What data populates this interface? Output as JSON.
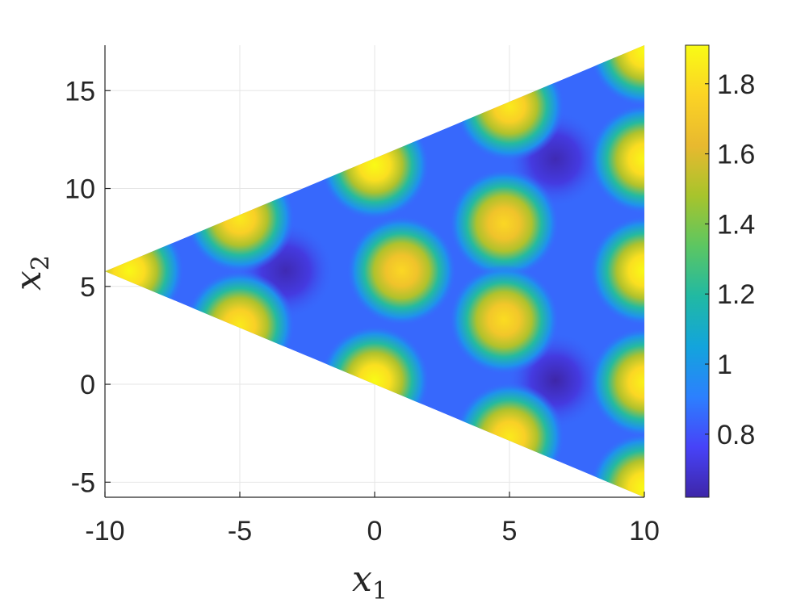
{
  "chart_data": {
    "type": "heatmap",
    "title": "",
    "xlabel": "x",
    "xlabel_subscript": "1",
    "ylabel": "x",
    "ylabel_subscript": "2",
    "xlim": [
      -10,
      10
    ],
    "ylim": [
      -5.77,
      17.32
    ],
    "x_ticks": [
      -10,
      -5,
      0,
      5,
      10
    ],
    "y_ticks": [
      -5,
      0,
      5,
      10,
      15
    ],
    "x_tick_labels": [
      "-10",
      "-5",
      "0",
      "5",
      "10"
    ],
    "y_tick_labels": [
      "-5",
      "0",
      "5",
      "10",
      "15"
    ],
    "grid": true,
    "domain_shape": "triangle",
    "domain_vertices": [
      [
        -10,
        5.77
      ],
      [
        10,
        17.32
      ],
      [
        10,
        -5.77
      ]
    ],
    "colorbar": {
      "range": [
        0.62,
        1.91
      ],
      "ticks": [
        0.8,
        1,
        1.2,
        1.4,
        1.6,
        1.8
      ],
      "tick_labels": [
        "0.8",
        "1",
        "1.2",
        "1.4",
        "1.6",
        "1.8"
      ],
      "colormap": [
        "#3e26a8",
        "#4743f8",
        "#2c80fe",
        "#13a4dc",
        "#21b9a3",
        "#5cc662",
        "#a7c42c",
        "#e8b92f",
        "#fbd325",
        "#f9fb15"
      ]
    },
    "field": {
      "background": 0.62,
      "peaks": [
        {
          "x": -9.1,
          "y": 5.8,
          "value": 1.9
        },
        {
          "x": -5,
          "y": 8.5,
          "value": 1.85
        },
        {
          "x": -5,
          "y": 3,
          "value": 1.85
        },
        {
          "x": 0,
          "y": 11.2,
          "value": 1.91
        },
        {
          "x": 0,
          "y": 0.2,
          "value": 1.91
        },
        {
          "x": 1,
          "y": 5.8,
          "value": 1.78
        },
        {
          "x": 4.8,
          "y": 8.2,
          "value": 1.78
        },
        {
          "x": 4.8,
          "y": 3.3,
          "value": 1.8
        },
        {
          "x": 5,
          "y": 14.2,
          "value": 1.85
        },
        {
          "x": 5,
          "y": -2.7,
          "value": 1.85
        },
        {
          "x": 10,
          "y": 17,
          "value": 1.91
        },
        {
          "x": 10,
          "y": 11.5,
          "value": 1.9
        },
        {
          "x": 10,
          "y": 5.8,
          "value": 1.91
        },
        {
          "x": 10,
          "y": 0.1,
          "value": 1.88
        },
        {
          "x": 10,
          "y": -5.3,
          "value": 1.91
        }
      ],
      "minima": [
        {
          "x": -3.3,
          "y": 5.8,
          "value": 0.64
        },
        {
          "x": 6.7,
          "y": 11.5,
          "value": 0.64
        },
        {
          "x": 6.7,
          "y": 0.2,
          "value": 0.62
        }
      ]
    }
  }
}
